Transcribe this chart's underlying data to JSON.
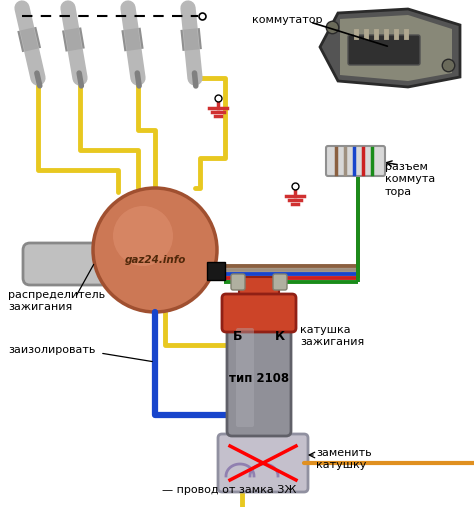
{
  "bg_color": "#ffffff",
  "label_kommutator": "коммутатор",
  "label_razyem": "разъем\nкоммута\nтора",
  "label_raspredelitel": "распределитель\nзажигания",
  "label_zaizolirovat": "заизолировать",
  "label_katushka": "катушка\nзажигания",
  "label_tip": "тип 2108",
  "label_B": "Б",
  "label_K": "К",
  "label_zamenit": "заменить\nкатушку",
  "label_provod": "— провод от замка ЗЖ",
  "label_gaz24": "gaz24.info",
  "yw": "#e8c820",
  "rw": "#cc2020",
  "gw": "#1a8c1a",
  "bw": "#1845cc",
  "grw": "#9e9080",
  "brw": "#8B6040",
  "plug_gray": "#b8b8b8",
  "plug_dark": "#909090",
  "dist_fill": "#cc7855",
  "dist_inner": "#e09070",
  "shaft_fill": "#c0c0c0",
  "coil_top": "#cc4428",
  "coil_body": "#909098",
  "old_coil_fill": "#c4c0cc",
  "ground_color": "#d03030",
  "text_color": "#000000",
  "connector_fill": "#d8d8d8",
  "black_connector": "#181818",
  "komm_dark": "#505050",
  "komm_mid": "#404040",
  "komm_metal": "#888070"
}
